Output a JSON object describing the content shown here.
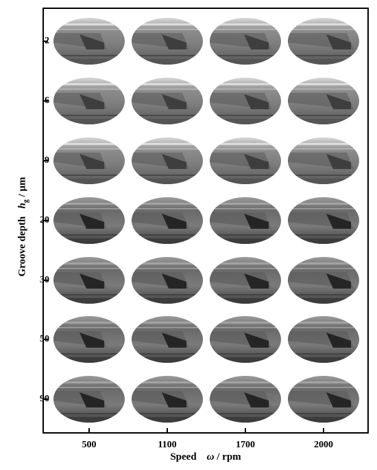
{
  "figure": {
    "y_axis": {
      "label": "Groove depth",
      "symbol": "h",
      "subscript": "g",
      "unit": "/ μm"
    },
    "x_axis": {
      "label": "Speed",
      "symbol": "ω",
      "unit": "/ rpm"
    },
    "rows": [
      "2",
      "6",
      "9",
      "20",
      "30",
      "50",
      "90"
    ],
    "columns": [
      "500",
      "1100",
      "1700",
      "2000"
    ],
    "colors": {
      "frame": "#000000",
      "background": "#ffffff",
      "photo_tone": "#6e6e6e"
    }
  }
}
